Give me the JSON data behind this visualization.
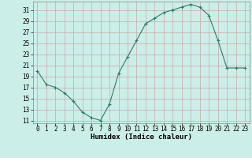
{
  "x": [
    0,
    1,
    2,
    3,
    4,
    5,
    6,
    7,
    8,
    9,
    10,
    11,
    12,
    13,
    14,
    15,
    16,
    17,
    18,
    19,
    20,
    21,
    22,
    23
  ],
  "y": [
    20,
    17.5,
    17,
    16,
    14.5,
    12.5,
    11.5,
    11,
    14,
    19.5,
    22.5,
    25.5,
    28.5,
    29.5,
    30.5,
    31,
    31.5,
    32,
    31.5,
    30,
    25.5,
    20.5,
    20.5,
    20.5
  ],
  "line_color": "#2d7a6a",
  "marker_color": "#2d7a6a",
  "bg_color": "#cceee8",
  "grid_color": "#c8a8a8",
  "xlabel": "Humidex (Indice chaleur)",
  "xlim": [
    -0.5,
    23.5
  ],
  "ylim": [
    10.5,
    32.5
  ],
  "yticks": [
    11,
    13,
    15,
    17,
    19,
    21,
    23,
    25,
    27,
    29,
    31
  ],
  "xticks": [
    0,
    1,
    2,
    3,
    4,
    5,
    6,
    7,
    8,
    9,
    10,
    11,
    12,
    13,
    14,
    15,
    16,
    17,
    18,
    19,
    20,
    21,
    22,
    23
  ],
  "label_fontsize": 6.5,
  "tick_fontsize": 5.5
}
